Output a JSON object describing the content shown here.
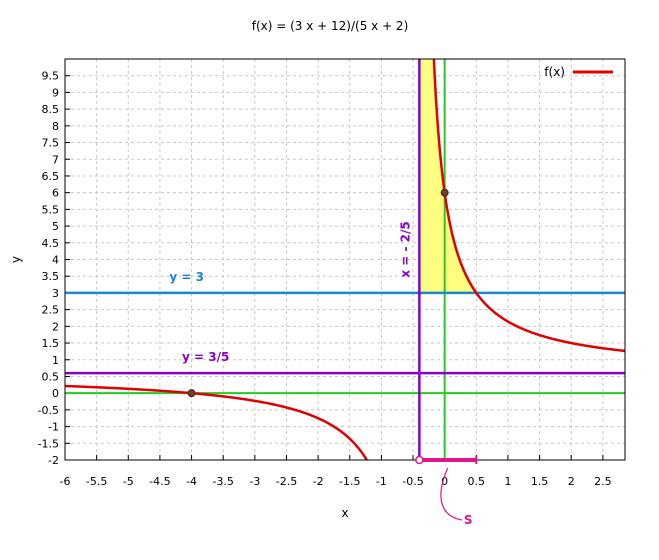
{
  "chart_data": {
    "type": "line",
    "title": "f(x) = (3 x + 12)/(5 x + 2)",
    "xlabel": "x",
    "ylabel": "y",
    "xlim": [
      -6,
      2.85
    ],
    "ylim": [
      -2,
      10
    ],
    "x_ticks": [
      "-6",
      "-5.5",
      "-5",
      "-4.5",
      "-4",
      "-3.5",
      "-3",
      "-2.5",
      "-2",
      "-1.5",
      "-1",
      "-0.5",
      "0",
      "0.5",
      "1",
      "1.5",
      "2",
      "2.5"
    ],
    "y_ticks": [
      "-2",
      "-1.5",
      "-1",
      "-0.5",
      "0",
      "0.5",
      "1",
      "1.5",
      "2",
      "2.5",
      "3",
      "3.5",
      "4",
      "4.5",
      "5",
      "5.5",
      "6",
      "6.5",
      "7",
      "7.5",
      "8",
      "8.5",
      "9",
      "9.5"
    ],
    "grid": true,
    "legend_position": "top-right",
    "series": [
      {
        "name": "f(x)",
        "function": "(3*x+12)/(5*x+2)",
        "color": "#e00000"
      }
    ],
    "asymptotes": [
      {
        "label": "y = 3",
        "orientation": "horizontal",
        "value": 3,
        "color": "#1a86d6"
      },
      {
        "label": "y = 3/5",
        "orientation": "horizontal",
        "value": 0.6,
        "color": "#8a00c8"
      },
      {
        "label": "x = - 2/5",
        "orientation": "vertical",
        "value": -0.4,
        "color": "#8a00c8"
      }
    ],
    "axes_lines": {
      "color": "#22cc22"
    },
    "points": [
      {
        "x": -4,
        "y": 0
      },
      {
        "x": 0,
        "y": 6
      }
    ],
    "shaded_region": {
      "from_x": -0.4,
      "to_x": 0.5,
      "between": [
        "f(x)",
        "y = 3"
      ],
      "color": "#ffff80"
    },
    "segment_S": {
      "label": "S",
      "from_x": -0.4,
      "to_x": 0.5,
      "y": -2,
      "color": "#e0148c"
    }
  }
}
